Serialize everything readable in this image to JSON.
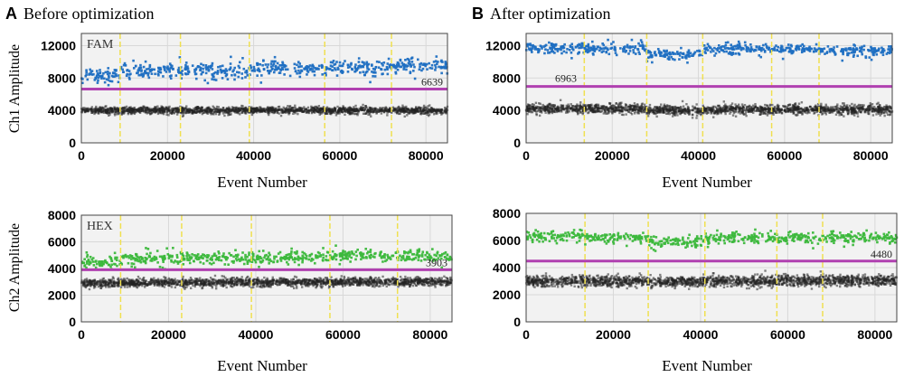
{
  "figure": {
    "panel_A": {
      "letter": "A",
      "title": "Before optimization"
    },
    "panel_B": {
      "letter": "B",
      "title": "After optimization"
    },
    "row_labels": {
      "ch1": "Ch1 Amplitude",
      "ch2": "Ch2 Amplitude"
    },
    "xlabel": "Event Number"
  },
  "colors": {
    "fam_positive": "#1f6fc2",
    "hex_positive": "#3cb83c",
    "negative": "#222222",
    "threshold": "#b040b0",
    "well_divider": "#f0e050",
    "plot_bg": "#f2f2f2",
    "grid": "#d8d8d8"
  },
  "chart_data": [
    {
      "id": "A-ch1",
      "type": "scatter",
      "channel_label": "FAM",
      "xlabel": "Event Number",
      "ylabel": "Ch1 Amplitude",
      "xlim": [
        0,
        85000
      ],
      "ylim": [
        0,
        13500
      ],
      "xticks": [
        0,
        20000,
        40000,
        60000,
        80000
      ],
      "yticks": [
        0,
        4000,
        8000,
        12000
      ],
      "grid": true,
      "threshold": 6639,
      "threshold_label": "6639",
      "well_boundaries": [
        9000,
        23000,
        39000,
        56500,
        72000
      ],
      "series": [
        {
          "name": "positive",
          "color": "#1f6fc2",
          "mean_by_well": [
            8300,
            8900,
            8900,
            9100,
            9300,
            9500
          ],
          "spread": 450,
          "count_per_well": 110
        },
        {
          "name": "negative",
          "color": "#222222",
          "mean_by_well": [
            4000,
            4000,
            4000,
            4000,
            4000,
            4000
          ],
          "spread": 220,
          "count_per_well": 320
        }
      ]
    },
    {
      "id": "A-ch2",
      "type": "scatter",
      "channel_label": "HEX",
      "xlabel": "Event Number",
      "ylabel": "Ch2 Amplitude",
      "xlim": [
        0,
        85000
      ],
      "ylim": [
        0,
        8000
      ],
      "xticks": [
        0,
        20000,
        40000,
        60000,
        80000
      ],
      "yticks": [
        0,
        2000,
        4000,
        6000,
        8000
      ],
      "grid": true,
      "threshold": 3903,
      "threshold_label": "3903",
      "well_boundaries": [
        9000,
        23000,
        39000,
        57000,
        72500
      ],
      "series": [
        {
          "name": "positive",
          "color": "#3cb83c",
          "mean_by_well": [
            4500,
            4700,
            4800,
            4800,
            4950,
            4900
          ],
          "spread": 220,
          "count_per_well": 110
        },
        {
          "name": "negative",
          "color": "#222222",
          "mean_by_well": [
            2900,
            2950,
            2950,
            2950,
            3000,
            3000
          ],
          "spread": 160,
          "count_per_well": 320
        }
      ]
    },
    {
      "id": "B-ch1",
      "type": "scatter",
      "channel_label": "",
      "xlabel": "Event Number",
      "ylabel": "",
      "xlim": [
        0,
        85000
      ],
      "ylim": [
        0,
        13500
      ],
      "xticks": [
        0,
        20000,
        40000,
        60000,
        80000
      ],
      "yticks": [
        0,
        4000,
        8000,
        12000
      ],
      "grid": true,
      "threshold": 6963,
      "threshold_label": "6963",
      "well_boundaries": [
        13500,
        28000,
        41000,
        57000,
        68000
      ],
      "series": [
        {
          "name": "positive",
          "color": "#1f6fc2",
          "mean_by_well": [
            11700,
            11600,
            10900,
            11600,
            11600,
            11400
          ],
          "spread": 320,
          "count_per_well": 110
        },
        {
          "name": "negative",
          "color": "#222222",
          "mean_by_well": [
            4200,
            4200,
            4000,
            4100,
            4100,
            4100
          ],
          "spread": 300,
          "count_per_well": 320
        }
      ]
    },
    {
      "id": "B-ch2",
      "type": "scatter",
      "channel_label": "",
      "xlabel": "Event Number",
      "ylabel": "",
      "xlim": [
        0,
        85000
      ],
      "ylim": [
        0,
        8000
      ],
      "xticks": [
        0,
        20000,
        40000,
        60000,
        80000
      ],
      "yticks": [
        0,
        2000,
        4000,
        6000,
        8000
      ],
      "grid": true,
      "threshold": 4480,
      "threshold_label": "4480",
      "well_boundaries": [
        13500,
        28000,
        41000,
        57500,
        68000
      ],
      "series": [
        {
          "name": "positive",
          "color": "#3cb83c",
          "mean_by_well": [
            6300,
            6200,
            5900,
            6200,
            6200,
            6200
          ],
          "spread": 200,
          "count_per_well": 110
        },
        {
          "name": "negative",
          "color": "#222222",
          "mean_by_well": [
            3000,
            3000,
            2950,
            3000,
            3050,
            3050
          ],
          "spread": 200,
          "count_per_well": 320
        }
      ]
    }
  ]
}
